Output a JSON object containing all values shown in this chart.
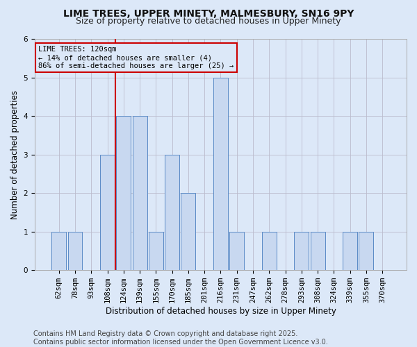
{
  "title_line1": "LIME TREES, UPPER MINETY, MALMESBURY, SN16 9PY",
  "title_line2": "Size of property relative to detached houses in Upper Minety",
  "xlabel": "Distribution of detached houses by size in Upper Minety",
  "ylabel": "Number of detached properties",
  "categories": [
    "62sqm",
    "78sqm",
    "93sqm",
    "108sqm",
    "124sqm",
    "139sqm",
    "155sqm",
    "170sqm",
    "185sqm",
    "201sqm",
    "216sqm",
    "231sqm",
    "247sqm",
    "262sqm",
    "278sqm",
    "293sqm",
    "308sqm",
    "324sqm",
    "339sqm",
    "355sqm",
    "370sqm"
  ],
  "values": [
    1,
    1,
    0,
    3,
    4,
    4,
    1,
    3,
    2,
    0,
    5,
    1,
    0,
    1,
    0,
    1,
    1,
    0,
    1,
    1,
    0
  ],
  "bar_color": "#c8d8f0",
  "bar_edge_color": "#5a8ac6",
  "vline_index": 3.5,
  "vline_color": "#cc0000",
  "annotation_text_line1": "LIME TREES: 120sqm",
  "annotation_text_line2": "← 14% of detached houses are smaller (4)",
  "annotation_text_line3": "86% of semi-detached houses are larger (25) →",
  "annotation_box_color": "#cc0000",
  "ylim": [
    0,
    6
  ],
  "yticks": [
    0,
    1,
    2,
    3,
    4,
    5,
    6
  ],
  "background_color": "#dce8f8",
  "footer_line1": "Contains HM Land Registry data © Crown copyright and database right 2025.",
  "footer_line2": "Contains public sector information licensed under the Open Government Licence v3.0.",
  "title_fontsize": 10,
  "subtitle_fontsize": 9,
  "axis_label_fontsize": 8.5,
  "tick_fontsize": 7.5,
  "annotation_fontsize": 7.5,
  "footer_fontsize": 7
}
